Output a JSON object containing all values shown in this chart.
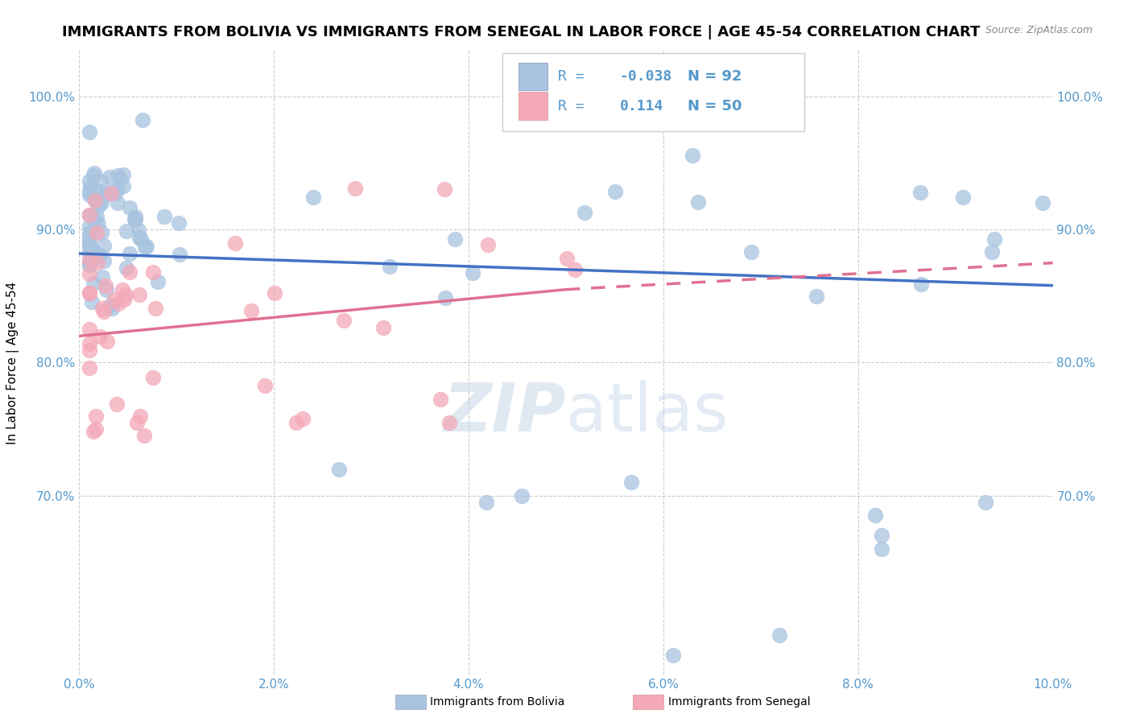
{
  "title": "IMMIGRANTS FROM BOLIVIA VS IMMIGRANTS FROM SENEGAL IN LABOR FORCE | AGE 45-54 CORRELATION CHART",
  "source": "Source: ZipAtlas.com",
  "ylabel": "In Labor Force | Age 45-54",
  "xlim": [
    0.0,
    0.1
  ],
  "ylim": [
    0.565,
    1.035
  ],
  "ytick_labels": [
    "70.0%",
    "80.0%",
    "90.0%",
    "100.0%"
  ],
  "ytick_values": [
    0.7,
    0.8,
    0.9,
    1.0
  ],
  "xtick_labels": [
    "0.0%",
    "2.0%",
    "4.0%",
    "6.0%",
    "8.0%",
    "10.0%"
  ],
  "xtick_values": [
    0.0,
    0.02,
    0.04,
    0.06,
    0.08,
    0.1
  ],
  "bolivia_color": "#a8c4e0",
  "senegal_color": "#f4a8b8",
  "line_bolivia_color": "#4472c4",
  "line_senegal_color": "#e07090",
  "bolivia_R": -0.038,
  "bolivia_N": 92,
  "senegal_R": 0.114,
  "senegal_N": 50,
  "legend_label_bolivia": "Immigrants from Bolivia",
  "legend_label_senegal": "Immigrants from Senegal",
  "background_color": "#ffffff",
  "grid_color": "#cccccc",
  "axis_color": "#5599cc",
  "title_fontsize": 13,
  "label_fontsize": 11,
  "tick_fontsize": 11,
  "watermark_text": "ZIPatlas",
  "watermark_color": "#c8d8e8",
  "watermark_alpha": 0.6
}
